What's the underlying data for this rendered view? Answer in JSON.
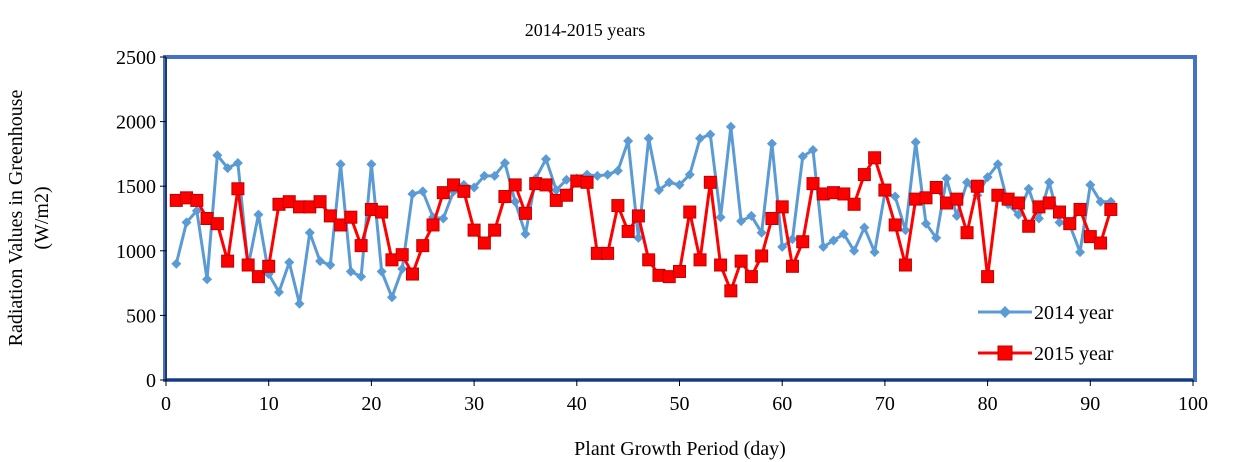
{
  "chart_data": {
    "type": "line",
    "title": "2014-2015 years",
    "xlabel": "Plant Growth Period (day)",
    "ylabel_line1": "Radiation Values in Greenhouse",
    "ylabel_line2": "(W/m2)",
    "xlim": [
      0,
      100
    ],
    "ylim": [
      0,
      2500
    ],
    "x_ticks": [
      0,
      10,
      20,
      30,
      40,
      50,
      60,
      70,
      80,
      90,
      100
    ],
    "y_ticks": [
      0,
      500,
      1000,
      1500,
      2000,
      2500
    ],
    "x_tick_labels": [
      "0",
      "10",
      "20",
      "30",
      "40",
      "50",
      "60",
      "70",
      "80",
      "90",
      "100"
    ],
    "y_tick_labels": [
      "0",
      "500",
      "1000",
      "1500",
      "2000",
      "2500"
    ],
    "grid": false,
    "legend_position": "bottom-right",
    "x": [
      1,
      2,
      3,
      4,
      5,
      6,
      7,
      8,
      9,
      10,
      11,
      12,
      13,
      14,
      15,
      16,
      17,
      18,
      19,
      20,
      21,
      22,
      23,
      24,
      25,
      26,
      27,
      28,
      29,
      30,
      31,
      32,
      33,
      34,
      35,
      36,
      37,
      38,
      39,
      40,
      41,
      42,
      43,
      44,
      45,
      46,
      47,
      48,
      49,
      50,
      51,
      52,
      53,
      54,
      55,
      56,
      57,
      58,
      59,
      60,
      61,
      62,
      63,
      64,
      65,
      66,
      67,
      68,
      69,
      70,
      71,
      72,
      73,
      74,
      75,
      76,
      77,
      78,
      79,
      80,
      81,
      82,
      83,
      84,
      85,
      86,
      87,
      88,
      89,
      90,
      91,
      92
    ],
    "series": [
      {
        "name": "2014 year",
        "color": "#5b9bd5",
        "marker": "diamond",
        "values": [
          900,
          1220,
          1310,
          780,
          1740,
          1640,
          1680,
          880,
          1280,
          820,
          680,
          910,
          590,
          1140,
          920,
          890,
          1670,
          840,
          800,
          1670,
          840,
          640,
          860,
          1440,
          1460,
          1260,
          1250,
          1460,
          1510,
          1490,
          1580,
          1580,
          1680,
          1380,
          1130,
          1560,
          1710,
          1470,
          1550,
          1560,
          1590,
          1580,
          1590,
          1620,
          1850,
          1100,
          1870,
          1470,
          1530,
          1510,
          1590,
          1870,
          1900,
          1260,
          1960,
          1230,
          1270,
          1140,
          1830,
          1030,
          1090,
          1730,
          1780,
          1030,
          1080,
          1130,
          1000,
          1180,
          990,
          1450,
          1420,
          1160,
          1840,
          1210,
          1100,
          1560,
          1270,
          1530,
          1430,
          1570,
          1670,
          1360,
          1280,
          1480,
          1250,
          1530,
          1220,
          1200,
          990,
          1510,
          1380,
          1380
        ]
      },
      {
        "name": "2015 year",
        "color": "#ff0000",
        "marker": "square",
        "values": [
          1390,
          1410,
          1390,
          1250,
          1210,
          920,
          1480,
          890,
          800,
          880,
          1360,
          1380,
          1340,
          1340,
          1380,
          1270,
          1200,
          1260,
          1040,
          1320,
          1300,
          930,
          970,
          820,
          1040,
          1200,
          1450,
          1510,
          1460,
          1160,
          1060,
          1160,
          1420,
          1510,
          1290,
          1520,
          1510,
          1390,
          1430,
          1540,
          1530,
          980,
          980,
          1350,
          1150,
          1270,
          930,
          810,
          800,
          840,
          1300,
          930,
          1530,
          890,
          690,
          920,
          800,
          960,
          1250,
          1340,
          880,
          1070,
          1520,
          1440,
          1450,
          1440,
          1360,
          1590,
          1720,
          1470,
          1200,
          890,
          1400,
          1410,
          1490,
          1370,
          1400,
          1140,
          1500,
          800,
          1430,
          1400,
          1370,
          1190,
          1340,
          1370,
          1300,
          1210,
          1320,
          1110,
          1060,
          1320
        ]
      }
    ]
  }
}
